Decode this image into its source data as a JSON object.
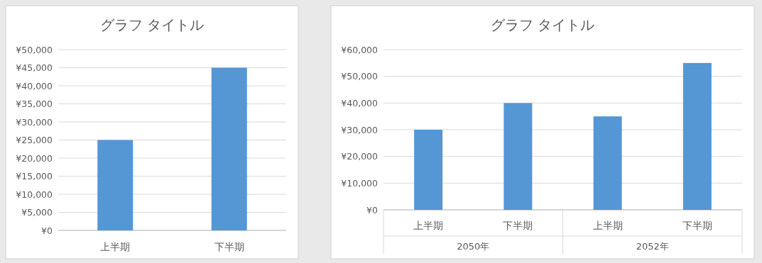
{
  "chart_data": [
    {
      "type": "bar",
      "title": "グラフ タイトル",
      "categories": [
        "上半期",
        "下半期"
      ],
      "values": [
        25000,
        45000
      ],
      "color": "#5596d5",
      "ylim": [
        0,
        50000
      ],
      "yticks": [
        {
          "value": 0,
          "label": "¥0"
        },
        {
          "value": 5000,
          "label": "¥5,000"
        },
        {
          "value": 10000,
          "label": "¥10,000"
        },
        {
          "value": 15000,
          "label": "¥15,000"
        },
        {
          "value": 20000,
          "label": "¥20,000"
        },
        {
          "value": 25000,
          "label": "¥25,000"
        },
        {
          "value": 30000,
          "label": "¥30,000"
        },
        {
          "value": 35000,
          "label": "¥35,000"
        },
        {
          "value": 40000,
          "label": "¥40,000"
        },
        {
          "value": 45000,
          "label": "¥45,000"
        },
        {
          "value": 50000,
          "label": "¥50,000"
        }
      ],
      "grid": "y"
    },
    {
      "type": "bar",
      "title": "グラフ タイトル",
      "categories": [
        "上半期",
        "下半期",
        "上半期",
        "下半期"
      ],
      "values": [
        30000,
        40000,
        35000,
        55000
      ],
      "color": "#5596d5",
      "ylim": [
        0,
        60000
      ],
      "yticks": [
        {
          "value": 0,
          "label": "¥0"
        },
        {
          "value": 10000,
          "label": "¥10,000"
        },
        {
          "value": 20000,
          "label": "¥20,000"
        },
        {
          "value": 30000,
          "label": "¥30,000"
        },
        {
          "value": 40000,
          "label": "¥40,000"
        },
        {
          "value": 50000,
          "label": "¥50,000"
        },
        {
          "value": 60000,
          "label": "¥60,000"
        }
      ],
      "grid": "y",
      "annotations": [
        "2050年",
        "2052年"
      ]
    }
  ]
}
